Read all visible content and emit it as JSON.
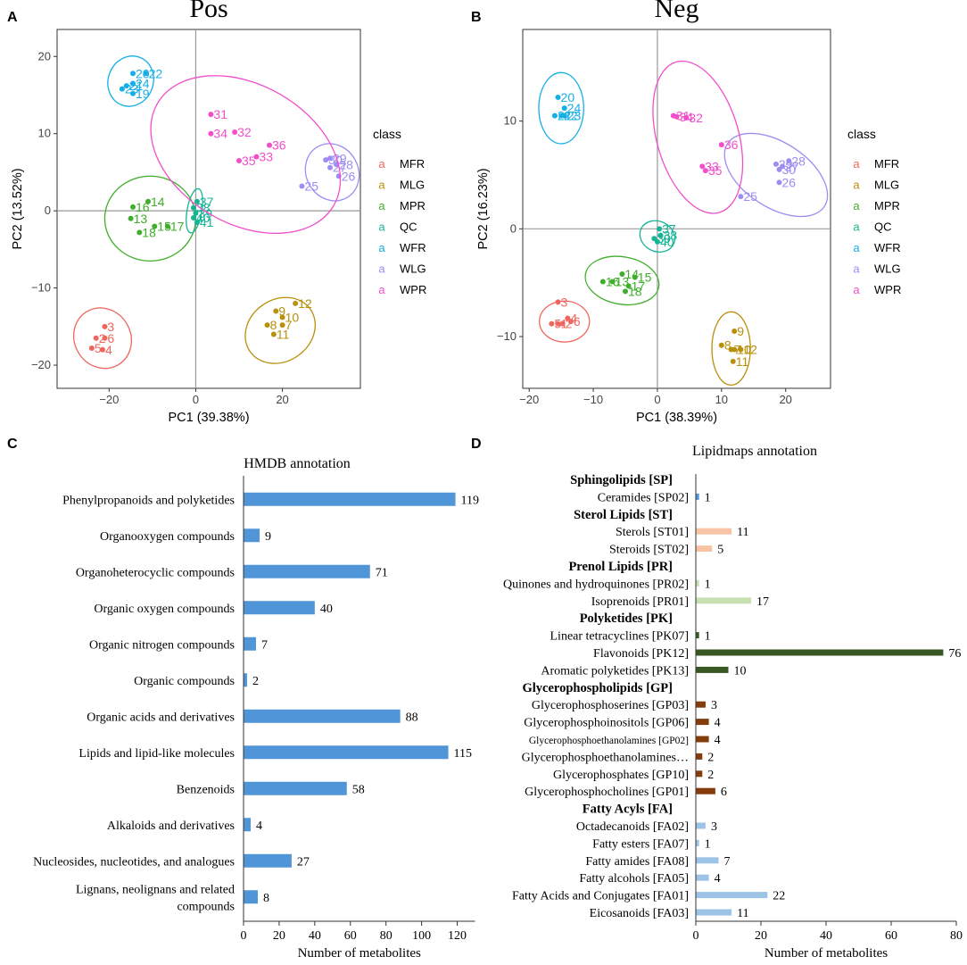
{
  "panel_letters": {
    "a": "A",
    "b": "B",
    "c": "C",
    "d": "D"
  },
  "colors": {
    "MFR": "#f0665e",
    "MLG": "#b8900c",
    "MPR": "#3fae2a",
    "QC": "#16b395",
    "WFR": "#16aee6",
    "WLG": "#9c8df2",
    "WPR": "#f24ecb",
    "hmdb_bar": "#4f95d8"
  },
  "chart_data": [
    {
      "type": "scatter",
      "title": "Pos",
      "xlabel": "PC1 (39.38%)",
      "ylabel": "PC2 (13.52%)",
      "xlim": [
        -32,
        38
      ],
      "ylim": [
        -23,
        23.5
      ],
      "xticks": [
        -20,
        0,
        20
      ],
      "yticks": [
        -20,
        -10,
        0,
        10,
        20
      ],
      "xtick_labels": [
        "−20",
        "0",
        "20"
      ],
      "ytick_labels": [
        "−20",
        "−10",
        "0",
        "10",
        "20"
      ],
      "legend_title": "class",
      "legend_letter": "a",
      "legend": [
        "MFR",
        "MLG",
        "MPR",
        "QC",
        "WFR",
        "WLG",
        "WPR"
      ],
      "groups": [
        {
          "class": "MFR",
          "ellipse": {
            "cx": -21.5,
            "cy": -16.5,
            "rx": 6.5,
            "ry": 4,
            "angle": 30
          },
          "points": [
            {
              "label": "3",
              "x": -21,
              "y": -15
            },
            {
              "label": "2",
              "x": -23,
              "y": -16.5
            },
            {
              "label": "6",
              "x": -21,
              "y": -16.5
            },
            {
              "label": "5",
              "x": -24,
              "y": -17.8
            },
            {
              "label": "4",
              "x": -21.5,
              "y": -18
            }
          ]
        },
        {
          "class": "MLG",
          "ellipse": {
            "cx": 19.5,
            "cy": -15.5,
            "rx": 8.5,
            "ry": 4,
            "angle": 35
          },
          "points": [
            {
              "label": "12",
              "x": 23,
              "y": -12
            },
            {
              "label": "9",
              "x": 18.5,
              "y": -13
            },
            {
              "label": "10",
              "x": 20,
              "y": -13.8
            },
            {
              "label": "8",
              "x": 16.5,
              "y": -14.8
            },
            {
              "label": "7",
              "x": 20,
              "y": -14.8
            },
            {
              "label": "11",
              "x": 18,
              "y": -16
            }
          ]
        },
        {
          "class": "MPR",
          "ellipse": {
            "cx": -10.5,
            "cy": -1,
            "rx": 10.5,
            "ry": 5.5,
            "angle": 0
          },
          "points": [
            {
              "label": "14",
              "x": -11,
              "y": 1.2
            },
            {
              "label": "16",
              "x": -14.5,
              "y": 0.5
            },
            {
              "label": "13",
              "x": -15,
              "y": -1
            },
            {
              "label": "15",
              "x": -9.5,
              "y": -2
            },
            {
              "label": "17",
              "x": -6.5,
              "y": -2
            },
            {
              "label": "18",
              "x": -13,
              "y": -2.8
            }
          ]
        },
        {
          "class": "QC",
          "ellipse": {
            "cx": -0.3,
            "cy": 0,
            "rx": 1.7,
            "ry": 2.9,
            "angle": -10
          },
          "points": [
            {
              "label": "37",
              "x": 0.3,
              "y": 1.2
            },
            {
              "label": "38",
              "x": -0.5,
              "y": 0.4
            },
            {
              "label": "39",
              "x": 0,
              "y": -0.3
            },
            {
              "label": "40",
              "x": -0.5,
              "y": -0.9
            },
            {
              "label": "41",
              "x": 0.3,
              "y": -1.5
            }
          ]
        },
        {
          "class": "WFR",
          "ellipse": {
            "cx": -15,
            "cy": 16.8,
            "rx": 5.2,
            "ry": 3.3,
            "angle": -20
          },
          "points": [
            {
              "label": "20",
              "x": -14.5,
              "y": 17.8
            },
            {
              "label": "22",
              "x": -11.5,
              "y": 17.8
            },
            {
              "label": "24",
              "x": -14.5,
              "y": 16.5
            },
            {
              "label": "21",
              "x": -16,
              "y": 16.2
            },
            {
              "label": "23",
              "x": -17,
              "y": 15.8
            },
            {
              "label": "19",
              "x": -14.5,
              "y": 15.2
            }
          ]
        },
        {
          "class": "WLG",
          "ellipse": {
            "cx": 31.5,
            "cy": 5,
            "rx": 6,
            "ry": 3.8,
            "angle": 30
          },
          "points": [
            {
              "label": "29",
              "x": 31,
              "y": 6.8
            },
            {
              "label": "30",
              "x": 30,
              "y": 6.6
            },
            {
              "label": "28",
              "x": 32.5,
              "y": 6
            },
            {
              "label": "27",
              "x": 31,
              "y": 5.6
            },
            {
              "label": "26",
              "x": 33,
              "y": 4.5
            },
            {
              "label": "25",
              "x": 24.5,
              "y": 3.2
            }
          ]
        },
        {
          "class": "WPR",
          "ellipse": {
            "cx": 11.5,
            "cy": 7.3,
            "rx": 23.5,
            "ry": 9,
            "angle": -30
          },
          "points": [
            {
              "label": "31",
              "x": 3.5,
              "y": 12.5
            },
            {
              "label": "34",
              "x": 3.5,
              "y": 10
            },
            {
              "label": "32",
              "x": 9,
              "y": 10.2
            },
            {
              "label": "36",
              "x": 17,
              "y": 8.5
            },
            {
              "label": "33",
              "x": 14,
              "y": 7
            },
            {
              "label": "35",
              "x": 10,
              "y": 6.5
            }
          ]
        }
      ]
    },
    {
      "type": "scatter",
      "title": "Neg",
      "xlabel": "PC1 (38.39%)",
      "ylabel": "PC2 (16.23%)",
      "xlim": [
        -21,
        27
      ],
      "ylim": [
        -14.8,
        18.5
      ],
      "xticks": [
        -20,
        -10,
        0,
        10,
        20
      ],
      "yticks": [
        -10,
        0,
        10
      ],
      "xtick_labels": [
        "−20",
        "−10",
        "0",
        "10",
        "20"
      ],
      "ytick_labels": [
        "−10",
        "0",
        "10"
      ],
      "legend_title": "class",
      "legend_letter": "a",
      "legend": [
        "MFR",
        "MLG",
        "MPR",
        "QC",
        "WFR",
        "WLG",
        "WPR"
      ],
      "groups": [
        {
          "class": "MFR",
          "ellipse": {
            "cx": -14.5,
            "cy": -8.6,
            "rx": 3.9,
            "ry": 1.9,
            "angle": 0
          },
          "points": [
            {
              "label": "3",
              "x": -15.5,
              "y": -6.8
            },
            {
              "label": "4",
              "x": -14,
              "y": -8.3
            },
            {
              "label": "6",
              "x": -13.5,
              "y": -8.6
            },
            {
              "label": "5",
              "x": -16.5,
              "y": -8.8
            },
            {
              "label": "1",
              "x": -15.5,
              "y": -8.8
            },
            {
              "label": "2",
              "x": -14.8,
              "y": -8.8
            }
          ]
        },
        {
          "class": "MLG",
          "ellipse": {
            "cx": 11.5,
            "cy": -11.1,
            "rx": 3,
            "ry": 3.4,
            "angle": 0
          },
          "points": [
            {
              "label": "9",
              "x": 12,
              "y": -9.5
            },
            {
              "label": "8",
              "x": 10,
              "y": -10.8
            },
            {
              "label": "7",
              "x": 11.5,
              "y": -11.2
            },
            {
              "label": "10",
              "x": 12,
              "y": -11.2
            },
            {
              "label": "12",
              "x": 13,
              "y": -11.2
            },
            {
              "label": "11",
              "x": 11.8,
              "y": -12.3
            }
          ]
        },
        {
          "class": "MPR",
          "ellipse": {
            "cx": -5.5,
            "cy": -4.8,
            "rx": 5.8,
            "ry": 2.2,
            "angle": -10
          },
          "points": [
            {
              "label": "14",
              "x": -5.5,
              "y": -4.2
            },
            {
              "label": "15",
              "x": -3.5,
              "y": -4.5
            },
            {
              "label": "16",
              "x": -8.5,
              "y": -4.9
            },
            {
              "label": "13",
              "x": -7,
              "y": -4.9
            },
            {
              "label": "17",
              "x": -4.5,
              "y": -5.3
            },
            {
              "label": "18",
              "x": -5,
              "y": -5.8
            }
          ]
        },
        {
          "class": "QC",
          "ellipse": {
            "cx": 0,
            "cy": -0.7,
            "rx": 2.8,
            "ry": 1.4,
            "angle": -25
          },
          "points": [
            {
              "label": "37",
              "x": 0.3,
              "y": 0
            },
            {
              "label": "38",
              "x": 0.5,
              "y": -0.6
            },
            {
              "label": "39",
              "x": -0.5,
              "y": -0.9
            },
            {
              "label": "40",
              "x": 0,
              "y": -1.2
            }
          ]
        },
        {
          "class": "WFR",
          "ellipse": {
            "cx": -15,
            "cy": 11.2,
            "rx": 3.5,
            "ry": 3.3,
            "angle": 0
          },
          "points": [
            {
              "label": "20",
              "x": -15.5,
              "y": 12.2
            },
            {
              "label": "24",
              "x": -14.5,
              "y": 11.2
            },
            {
              "label": "21",
              "x": -16,
              "y": 10.5
            },
            {
              "label": "22",
              "x": -15,
              "y": 10.5
            },
            {
              "label": "23",
              "x": -14.5,
              "y": 10.5
            }
          ]
        },
        {
          "class": "WLG",
          "ellipse": {
            "cx": 18.5,
            "cy": 5,
            "rx": 9,
            "ry": 3,
            "angle": -33
          },
          "points": [
            {
              "label": "28",
              "x": 20.5,
              "y": 6.3
            },
            {
              "label": "29",
              "x": 18.5,
              "y": 6
            },
            {
              "label": "27",
              "x": 19.5,
              "y": 5.8
            },
            {
              "label": "30",
              "x": 19,
              "y": 5.5
            },
            {
              "label": "26",
              "x": 19,
              "y": 4.3
            },
            {
              "label": "25",
              "x": 13,
              "y": 3
            }
          ]
        },
        {
          "class": "WPR",
          "ellipse": {
            "cx": 6.3,
            "cy": 8.5,
            "rx": 12.2,
            "ry": 3.8,
            "angle": -74
          },
          "points": [
            {
              "label": "34",
              "x": 3,
              "y": 10.4
            },
            {
              "label": "31",
              "x": 2.5,
              "y": 10.5
            },
            {
              "label": "32",
              "x": 4.5,
              "y": 10.3
            },
            {
              "label": "36",
              "x": 10,
              "y": 7.8
            },
            {
              "label": "33",
              "x": 7,
              "y": 5.8
            },
            {
              "label": "35",
              "x": 7.5,
              "y": 5.4
            }
          ]
        }
      ]
    },
    {
      "type": "bar",
      "orientation": "horizontal",
      "title": "HMDB annotation",
      "xlabel": "Number of metabolites",
      "xlim": [
        0,
        130
      ],
      "xticks": [
        0,
        20,
        40,
        60,
        80,
        100,
        120
      ],
      "categories": [
        "Phenylpropanoids and polyketides",
        "Organooxygen compounds",
        "Organoheterocyclic compounds",
        "Organic oxygen compounds",
        "Organic nitrogen compounds",
        "Organic compounds",
        "Organic acids and derivatives",
        "Lipids and lipid-like molecules",
        "Benzenoids",
        "Alkaloids and derivatives",
        "Nucleosides, nucleotides, and analogues",
        "Lignans, neolignans and related compounds"
      ],
      "category_lines": [
        [
          "Phenylpropanoids and polyketides"
        ],
        [
          "Organooxygen compounds"
        ],
        [
          "Organoheterocyclic compounds"
        ],
        [
          "Organic oxygen compounds"
        ],
        [
          "Organic nitrogen compounds"
        ],
        [
          "Organic compounds"
        ],
        [
          "Organic acids and derivatives"
        ],
        [
          "Lipids and lipid-like molecules"
        ],
        [
          "Benzenoids"
        ],
        [
          "Alkaloids and derivatives"
        ],
        [
          "Nucleosides, nucleotides, and analogues"
        ],
        [
          "Lignans, neolignans and related",
          "compounds"
        ]
      ],
      "values": [
        119,
        9,
        71,
        40,
        7,
        2,
        88,
        115,
        58,
        4,
        27,
        8
      ]
    },
    {
      "type": "bar",
      "orientation": "horizontal",
      "title": "Lipidmaps annotation",
      "xlabel": "Number of metabolites",
      "xlim": [
        0,
        80
      ],
      "xticks": [
        0,
        20,
        40,
        60,
        80
      ],
      "rows": [
        {
          "kind": "header",
          "label": "Sphingolipids [SP]"
        },
        {
          "kind": "bar",
          "label": "Ceramides [SP02]",
          "value": 1,
          "color": "#4f95d8"
        },
        {
          "kind": "header",
          "label": "Sterol Lipids [ST]"
        },
        {
          "kind": "bar",
          "label": "Sterols [ST01]",
          "value": 11,
          "color": "#f7c4a6"
        },
        {
          "kind": "bar",
          "label": "Steroids [ST02]",
          "value": 5,
          "color": "#f7c4a6"
        },
        {
          "kind": "header",
          "label": "Prenol Lipids [PR]"
        },
        {
          "kind": "bar",
          "label": "Quinones and hydroquinones [PR02]",
          "value": 1,
          "color": "#c6e0b4"
        },
        {
          "kind": "bar",
          "label": "Isoprenoids [PR01]",
          "value": 17,
          "color": "#c6e0b4"
        },
        {
          "kind": "header",
          "label": "Polyketides [PK]"
        },
        {
          "kind": "bar",
          "label": "Linear tetracyclines [PK07]",
          "value": 1,
          "color": "#385723"
        },
        {
          "kind": "bar",
          "label": "Flavonoids [PK12]",
          "value": 76,
          "color": "#385723"
        },
        {
          "kind": "bar",
          "label": "Aromatic polyketides [PK13]",
          "value": 10,
          "color": "#385723"
        },
        {
          "kind": "header",
          "label": "Glycerophospholipids [GP]"
        },
        {
          "kind": "bar",
          "label": "Glycerophosphoserines [GP03]",
          "value": 3,
          "color": "#843c0c"
        },
        {
          "kind": "bar",
          "label": "Glycerophosphoinositols [GP06]",
          "value": 4,
          "color": "#843c0c"
        },
        {
          "kind": "bar",
          "label": "Glycerophosphoethanolamines [GP02]",
          "value": 4,
          "color": "#843c0c",
          "small": true
        },
        {
          "kind": "bar",
          "label": "Glycerophosphoethanolamines…",
          "value": 2,
          "color": "#843c0c"
        },
        {
          "kind": "bar",
          "label": "Glycerophosphates [GP10]",
          "value": 2,
          "color": "#843c0c"
        },
        {
          "kind": "bar",
          "label": "Glycerophosphocholines [GP01]",
          "value": 6,
          "color": "#843c0c"
        },
        {
          "kind": "header",
          "label": "Fatty Acyls [FA]"
        },
        {
          "kind": "bar",
          "label": "Octadecanoids [FA02]",
          "value": 3,
          "color": "#9dc3e6"
        },
        {
          "kind": "bar",
          "label": "Fatty esters [FA07]",
          "value": 1,
          "color": "#9dc3e6"
        },
        {
          "kind": "bar",
          "label": "Fatty amides [FA08]",
          "value": 7,
          "color": "#9dc3e6"
        },
        {
          "kind": "bar",
          "label": "Fatty alcohols [FA05]",
          "value": 4,
          "color": "#9dc3e6"
        },
        {
          "kind": "bar",
          "label": "Fatty Acids and Conjugates [FA01]",
          "value": 22,
          "color": "#9dc3e6"
        },
        {
          "kind": "bar",
          "label": "Eicosanoids [FA03]",
          "value": 11,
          "color": "#9dc3e6"
        }
      ]
    }
  ]
}
